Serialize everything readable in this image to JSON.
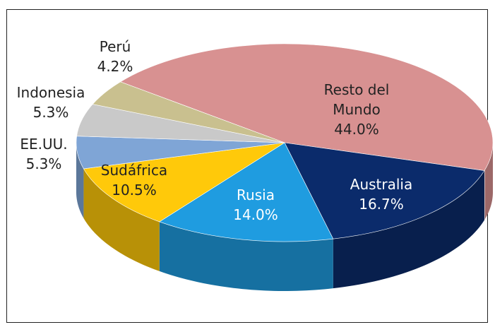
{
  "chart_data": {
    "type": "pie",
    "categories": [
      "Resto del Mundo",
      "Australia",
      "Rusia",
      "Sudáfrica",
      "EE.UU.",
      "Indonesia",
      "Perú"
    ],
    "values": [
      44.0,
      16.7,
      14.0,
      10.5,
      5.3,
      5.3,
      4.2
    ],
    "value_labels": [
      "44.0%",
      "16.7%",
      "14.0%",
      "10.5%",
      "5.3%",
      "5.3%",
      "4.2%"
    ],
    "colors": [
      "#d89191",
      "#0b2b6b",
      "#1f9ce0",
      "#ffc90a",
      "#7fa5d6",
      "#c9c9c9",
      "#c9c08f"
    ]
  }
}
